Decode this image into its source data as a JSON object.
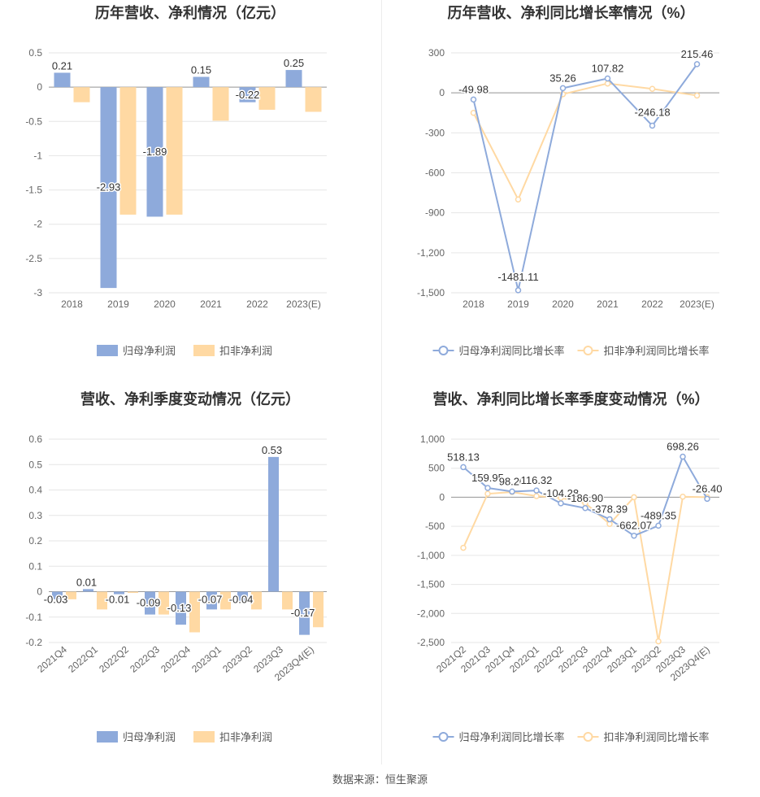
{
  "colors": {
    "blue": "#8eaadb",
    "orange": "#ffd9a3",
    "grid": "#e6e6e6",
    "axis": "#999999",
    "label": "#333333",
    "title": "#333333"
  },
  "footer": {
    "source": "数据来源：恒生聚源"
  },
  "chart_data": [
    {
      "type": "bar",
      "title": "历年营收、净利情况（亿元）",
      "categories": [
        "2018",
        "2019",
        "2020",
        "2021",
        "2022",
        "2023(E)"
      ],
      "ylim": [
        -3,
        0.5
      ],
      "yticks": [
        0.5,
        0,
        -0.5,
        -1,
        -1.5,
        -2,
        -2.5,
        -3
      ],
      "ytick_labels": [
        "0.5",
        "0",
        "-0.5",
        "-1",
        "-1.5",
        "-2",
        "-2.5",
        "-3"
      ],
      "series": [
        {
          "name": "归母净利润",
          "values": [
            0.21,
            -2.93,
            -1.89,
            0.15,
            -0.22,
            0.25
          ],
          "labels": [
            "0.21",
            "-2.93",
            "-1.89",
            "0.15",
            "-0.22",
            "0.25"
          ]
        },
        {
          "name": "扣非净利润",
          "values": [
            -0.22,
            -1.86,
            -1.86,
            -0.49,
            -0.33,
            -0.36
          ]
        }
      ],
      "legend": [
        "归母净利润",
        "扣非净利润"
      ]
    },
    {
      "type": "line",
      "title": "历年营收、净利同比增长率情况（%）",
      "categories": [
        "2018",
        "2019",
        "2020",
        "2021",
        "2022",
        "2023(E)"
      ],
      "ylim": [
        -1500,
        300
      ],
      "yticks": [
        300,
        0,
        -300,
        -600,
        -900,
        -1200,
        -1500
      ],
      "ytick_labels": [
        "300",
        "0",
        "-300",
        "-600",
        "-900",
        "-1,200",
        "-1,500"
      ],
      "series": [
        {
          "name": "归母净利润同比增长率",
          "values": [
            -49.98,
            -1481.11,
            35.26,
            107.82,
            -246.18,
            215.46
          ],
          "labels": [
            "-49.98",
            "-1481.11",
            "35.26",
            "107.82",
            "-246.18",
            "215.46"
          ]
        },
        {
          "name": "扣非净利润同比增长率",
          "values": [
            -150,
            -800,
            -10,
            70,
            30,
            -20
          ]
        }
      ],
      "legend": [
        "归母净利润同比增长率",
        "扣非净利润同比增长率"
      ]
    },
    {
      "type": "bar",
      "title": "营收、净利季度变动情况（亿元）",
      "categories": [
        "2021Q4",
        "2022Q1",
        "2022Q2",
        "2022Q3",
        "2022Q4",
        "2023Q1",
        "2023Q2",
        "2023Q3",
        "2023Q4(E)"
      ],
      "ylim": [
        -0.2,
        0.6
      ],
      "yticks": [
        0.6,
        0.5,
        0.4,
        0.3,
        0.2,
        0.1,
        0,
        -0.1,
        -0.2
      ],
      "ytick_labels": [
        "0.6",
        "0.5",
        "0.4",
        "0.3",
        "0.2",
        "0.1",
        "0",
        "-0.1",
        "-0.2"
      ],
      "series": [
        {
          "name": "归母净利润",
          "values": [
            -0.03,
            0.01,
            -0.01,
            -0.09,
            -0.13,
            -0.07,
            -0.04,
            0.53,
            -0.17
          ],
          "labels": [
            "-0.03",
            "0.01",
            "-0.01",
            "-0.09",
            "-0.13",
            "-0.07",
            "-0.04",
            "0.53",
            "-0.17"
          ]
        },
        {
          "name": "扣非净利润",
          "values": [
            -0.03,
            -0.07,
            -0.005,
            -0.09,
            -0.16,
            -0.07,
            -0.07,
            -0.07,
            -0.14
          ]
        }
      ],
      "legend": [
        "归母净利润",
        "扣非净利润"
      ]
    },
    {
      "type": "line",
      "title": "营收、净利同比增长率季度变动情况（%）",
      "categories": [
        "2021Q2",
        "2021Q3",
        "2021Q4",
        "2022Q1",
        "2022Q2",
        "2022Q3",
        "2022Q4",
        "2023Q1",
        "2023Q2",
        "2023Q3",
        "2023Q4(E)"
      ],
      "ylim": [
        -2500,
        1000
      ],
      "yticks": [
        1000,
        500,
        0,
        -500,
        -1000,
        -1500,
        -2000,
        -2500
      ],
      "ytick_labels": [
        "1,000",
        "500",
        "0",
        "-500",
        "-1,000",
        "-1,500",
        "-2,000",
        "-2,500"
      ],
      "series": [
        {
          "name": "归母净利润同比增长率",
          "values": [
            518.13,
            159.95,
            98.2,
            116.32,
            -104.28,
            -186.9,
            -378.39,
            -662.07,
            -489.35,
            698.26,
            -26.4
          ],
          "labels": [
            "518.13",
            "159.95",
            "98.20",
            "116.32",
            "-104.28",
            "-186.90",
            "-378.39",
            "-662.07",
            "-489.35",
            "698.26",
            "-26.40"
          ]
        },
        {
          "name": "扣非净利润同比增长率",
          "values": [
            -870,
            60,
            90,
            20,
            -10,
            -100,
            -460,
            0,
            -2480,
            10,
            0
          ]
        }
      ],
      "legend": [
        "归母净利润同比增长率",
        "扣非净利润同比增长率"
      ]
    }
  ]
}
